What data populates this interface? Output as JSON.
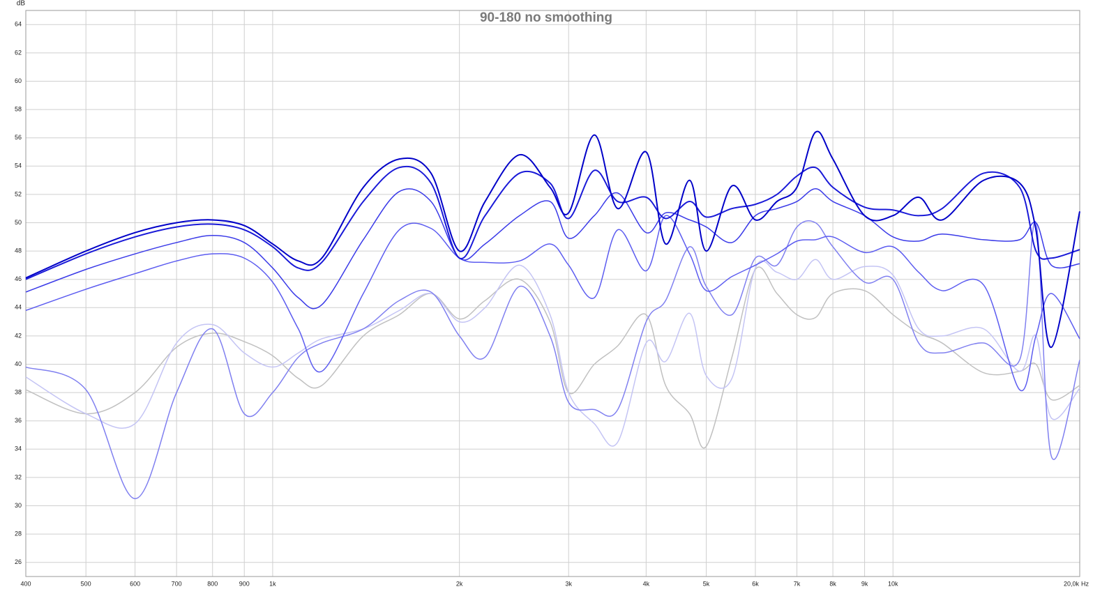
{
  "chart_data": {
    "type": "line",
    "title": "90-180 no smoothing",
    "y_label": "dB",
    "x_label": "Hz",
    "log_x": true,
    "grid": true,
    "xlim": [
      400,
      20000
    ],
    "ylim": [
      25,
      65
    ],
    "xticks": [
      400,
      500,
      600,
      700,
      800,
      900,
      {
        "value": 1000,
        "label": "1k"
      },
      {
        "value": 2000,
        "label": "2k"
      },
      {
        "value": 3000,
        "label": "3k"
      },
      {
        "value": 4000,
        "label": "4k"
      },
      {
        "value": 5000,
        "label": "5k"
      },
      {
        "value": 6000,
        "label": "6k"
      },
      {
        "value": 7000,
        "label": "7k"
      },
      {
        "value": 8000,
        "label": "8k"
      },
      {
        "value": 9000,
        "label": "9k"
      },
      {
        "value": 10000,
        "label": "10k"
      },
      {
        "value": 20000,
        "label": "20,0k"
      }
    ],
    "yticks": [
      26,
      28,
      30,
      32,
      34,
      36,
      38,
      40,
      42,
      44,
      46,
      48,
      50,
      52,
      54,
      56,
      58,
      60,
      62,
      64
    ],
    "x": [
      400,
      500,
      600,
      700,
      800,
      900,
      1000,
      1100,
      1200,
      1400,
      1600,
      1800,
      2000,
      2200,
      2500,
      2800,
      3000,
      3300,
      3600,
      4000,
      4300,
      4700,
      5000,
      5500,
      6000,
      6500,
      7000,
      7500,
      8000,
      9000,
      10000,
      11000,
      12000,
      14000,
      16000,
      17000,
      18000,
      20000
    ],
    "series": [
      {
        "color": "#0000c8",
        "values": [
          46.1,
          48,
          49.3,
          50,
          50.2,
          49.8,
          48.5,
          47.3,
          47.5,
          52.5,
          54.5,
          53.5,
          48,
          51.5,
          54.8,
          52.5,
          50.7,
          56.2,
          51,
          55,
          48.5,
          53,
          48,
          52.6,
          50.2,
          51.5,
          52.5,
          56.4,
          54.5,
          50.5,
          50.5,
          51.8,
          50.2,
          53,
          52.8,
          49.5,
          41.2,
          50.8
        ]
      },
      {
        "color": "#1a1ad8",
        "values": [
          46,
          47.8,
          49,
          49.7,
          49.9,
          49.5,
          48.3,
          46.8,
          47.2,
          51.5,
          53.9,
          52.8,
          47.5,
          50.5,
          53.5,
          52.8,
          50.3,
          53.7,
          51.5,
          51.8,
          50.3,
          51.5,
          50.4,
          51,
          51.3,
          52,
          53.3,
          53.9,
          52.5,
          51.1,
          50.9,
          50.5,
          51,
          53.5,
          52.5,
          48,
          47.5,
          48.1
        ]
      },
      {
        "color": "#3a3ae8",
        "values": [
          45.1,
          46.7,
          47.8,
          48.6,
          49.1,
          48.6,
          46.8,
          44.7,
          44.2,
          48.8,
          52.2,
          51.5,
          47.5,
          48.5,
          50.5,
          51.5,
          48.9,
          50.5,
          52.1,
          49.3,
          50.7,
          50.2,
          49.7,
          48.6,
          50.5,
          51,
          51.5,
          52.4,
          51.5,
          50.5,
          49,
          48.7,
          49.2,
          48.8,
          48.8,
          50,
          47,
          47.1
        ]
      },
      {
        "color": "#5c5cf0",
        "values": [
          43.8,
          45.3,
          46.4,
          47.3,
          47.8,
          47.5,
          45.8,
          42.5,
          39.5,
          45,
          49.5,
          49.6,
          47.5,
          47.2,
          47.3,
          48.5,
          47,
          44.7,
          49.5,
          46.6,
          50.5,
          47.8,
          45.2,
          46.2,
          47,
          47.8,
          48.7,
          48.8,
          49,
          47.9,
          48.3,
          46.5,
          45.2,
          45.6,
          38.2,
          42,
          45,
          41.8
        ]
      },
      {
        "color": "#8080f0",
        "values": [
          39.8,
          38.2,
          30.5,
          38,
          42.5,
          36.5,
          38,
          40.5,
          41.5,
          42.5,
          44.5,
          45.1,
          42,
          40.5,
          45.5,
          42,
          37.3,
          36.8,
          36.8,
          43,
          44.5,
          48.3,
          45.5,
          43.5,
          47.5,
          47,
          49.7,
          50,
          48.3,
          45.8,
          46,
          41.5,
          40.8,
          41.5,
          40.3,
          50,
          33.5,
          40.3
        ]
      },
      {
        "color": "#c4c4f4",
        "values": [
          39.1,
          36.5,
          35.8,
          41.5,
          42.8,
          40.8,
          39.8,
          40.8,
          41.8,
          42.5,
          43.8,
          45,
          43,
          44,
          47,
          43.5,
          38,
          35.8,
          34.5,
          41.5,
          40.2,
          43.6,
          39.2,
          39,
          46.8,
          46.5,
          46,
          47.4,
          46,
          46.9,
          46.3,
          42.5,
          42,
          42.5,
          39.5,
          42,
          36.2,
          38.3
        ]
      },
      {
        "color": "#c0c0c0",
        "values": [
          38.2,
          36.5,
          38,
          41.2,
          42.2,
          41.6,
          40.6,
          39,
          38.5,
          42,
          43.5,
          45,
          43.2,
          44.5,
          46,
          43,
          38,
          40,
          41.3,
          43.5,
          38.5,
          36.5,
          34.2,
          40.5,
          46.7,
          45,
          43.5,
          43.3,
          45,
          45.2,
          43.5,
          42.2,
          41.5,
          39.4,
          39.5,
          40,
          37.5,
          38.5
        ]
      }
    ]
  }
}
